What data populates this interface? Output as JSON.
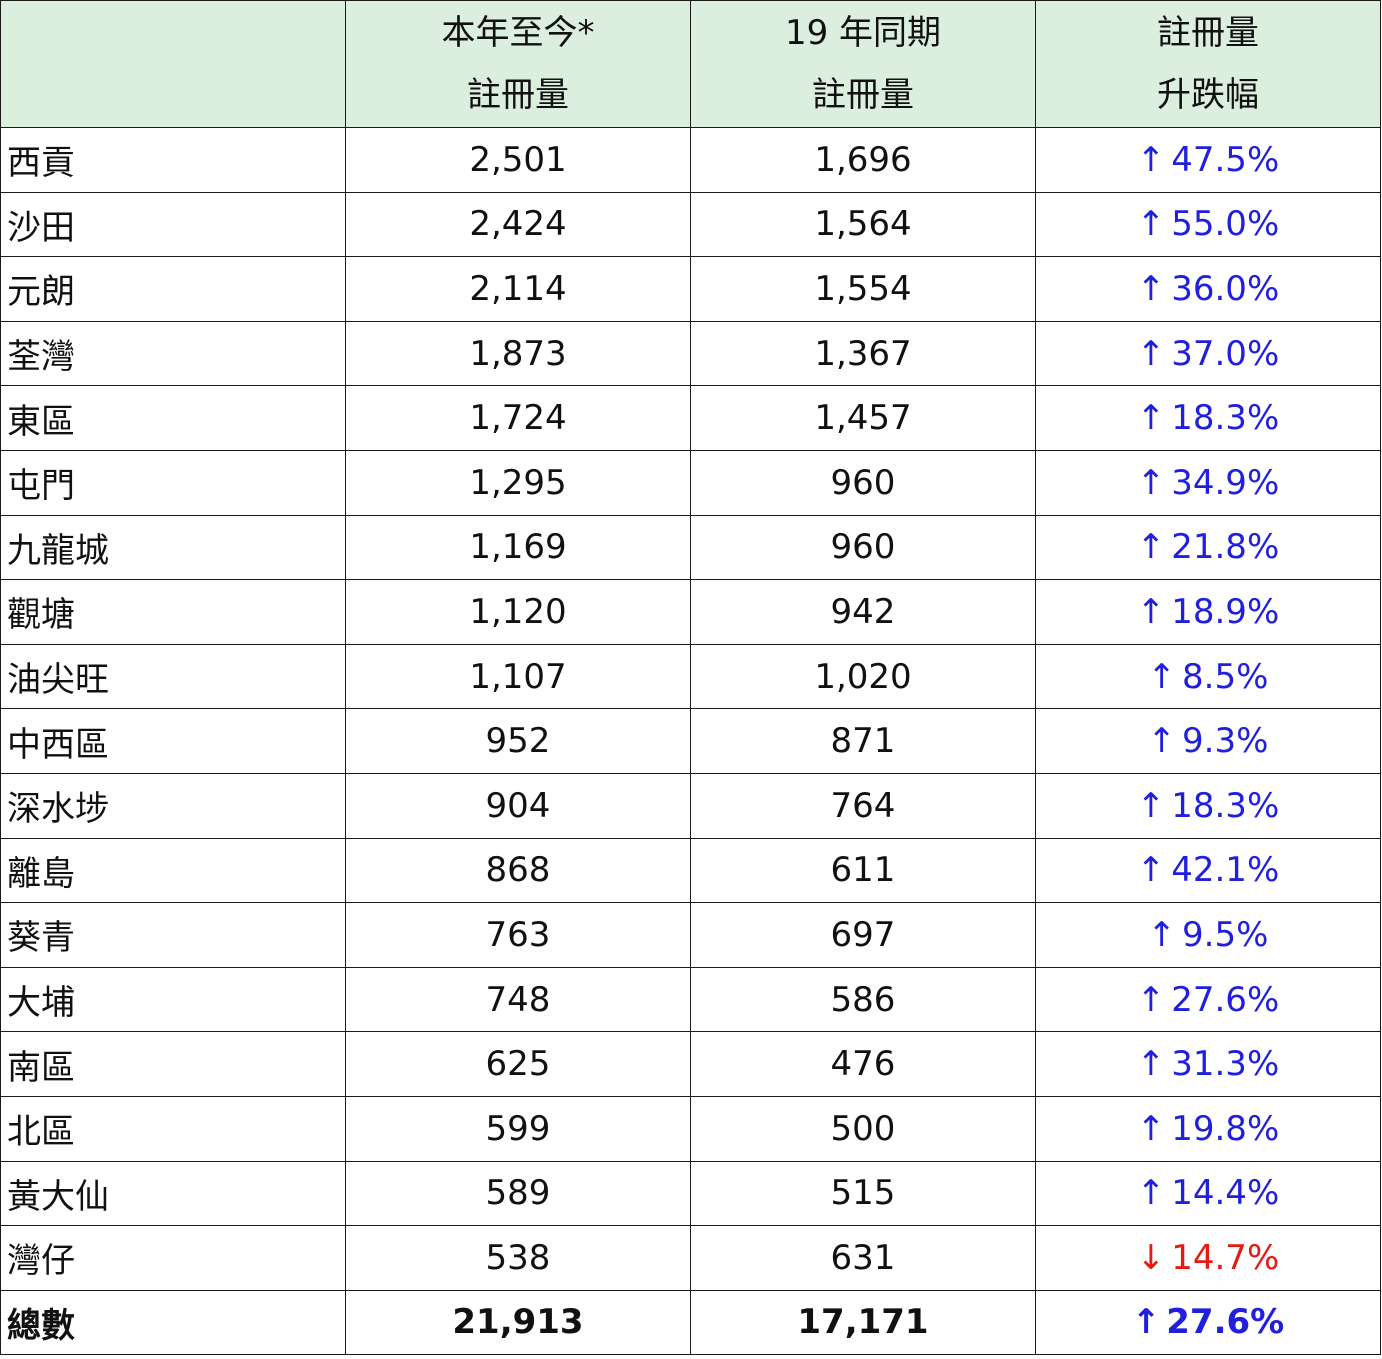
{
  "header": {
    "col1_line1": "本年至今*",
    "col1_line2": "註冊量",
    "col2_line1": "19 年同期",
    "col2_line2": "註冊量",
    "col3_line1": "註冊量",
    "col3_line2": "升跌幅"
  },
  "colors": {
    "header_bg": "#dcefdf",
    "up": "#1f1fdd",
    "down": "#e8190f"
  },
  "rows": [
    {
      "district": "西貢",
      "ytd": "2,501",
      "prev": "1,696",
      "arrow": "↑",
      "direction": "up",
      "change": "47.5%"
    },
    {
      "district": "沙田",
      "ytd": "2,424",
      "prev": "1,564",
      "arrow": "↑",
      "direction": "up",
      "change": "55.0%"
    },
    {
      "district": "元朗",
      "ytd": "2,114",
      "prev": "1,554",
      "arrow": "↑",
      "direction": "up",
      "change": "36.0%"
    },
    {
      "district": "荃灣",
      "ytd": "1,873",
      "prev": "1,367",
      "arrow": "↑",
      "direction": "up",
      "change": "37.0%"
    },
    {
      "district": "東區",
      "ytd": "1,724",
      "prev": "1,457",
      "arrow": "↑",
      "direction": "up",
      "change": "18.3%"
    },
    {
      "district": "屯門",
      "ytd": "1,295",
      "prev": "960",
      "arrow": "↑",
      "direction": "up",
      "change": "34.9%"
    },
    {
      "district": "九龍城",
      "ytd": "1,169",
      "prev": "960",
      "arrow": "↑",
      "direction": "up",
      "change": "21.8%"
    },
    {
      "district": "觀塘",
      "ytd": "1,120",
      "prev": "942",
      "arrow": "↑",
      "direction": "up",
      "change": "18.9%"
    },
    {
      "district": "油尖旺",
      "ytd": "1,107",
      "prev": "1,020",
      "arrow": "↑",
      "direction": "up",
      "change": "8.5%"
    },
    {
      "district": "中西區",
      "ytd": "952",
      "prev": "871",
      "arrow": "↑",
      "direction": "up",
      "change": "9.3%"
    },
    {
      "district": "深水埗",
      "ytd": "904",
      "prev": "764",
      "arrow": "↑",
      "direction": "up",
      "change": "18.3%"
    },
    {
      "district": "離島",
      "ytd": "868",
      "prev": "611",
      "arrow": "↑",
      "direction": "up",
      "change": "42.1%"
    },
    {
      "district": "葵青",
      "ytd": "763",
      "prev": "697",
      "arrow": "↑",
      "direction": "up",
      "change": "9.5%"
    },
    {
      "district": "大埔",
      "ytd": "748",
      "prev": "586",
      "arrow": "↑",
      "direction": "up",
      "change": "27.6%"
    },
    {
      "district": "南區",
      "ytd": "625",
      "prev": "476",
      "arrow": "↑",
      "direction": "up",
      "change": "31.3%"
    },
    {
      "district": "北區",
      "ytd": "599",
      "prev": "500",
      "arrow": "↑",
      "direction": "up",
      "change": "19.8%"
    },
    {
      "district": "黃大仙",
      "ytd": "589",
      "prev": "515",
      "arrow": "↑",
      "direction": "up",
      "change": "14.4%"
    },
    {
      "district": "灣仔",
      "ytd": "538",
      "prev": "631",
      "arrow": "↓",
      "direction": "down",
      "change": "14.7%"
    }
  ],
  "total": {
    "label": "總數",
    "ytd": "21,913",
    "prev": "17,171",
    "arrow": "↑",
    "direction": "up",
    "change": "27.6%"
  }
}
